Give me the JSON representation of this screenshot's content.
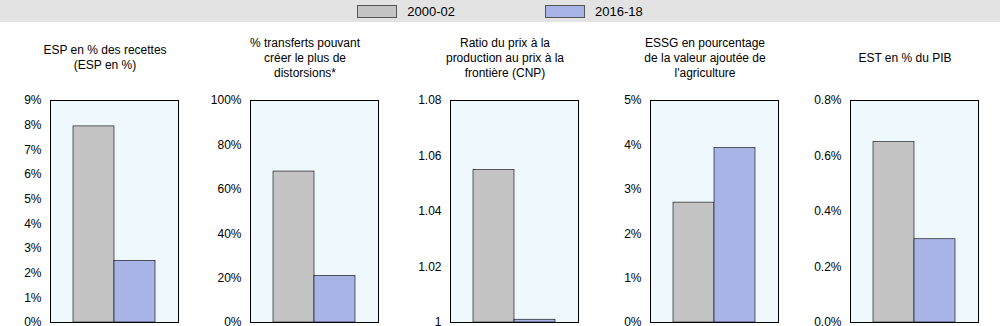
{
  "chart_data": [
    {
      "type": "bar",
      "title": "ESP en % des recettes (ESP en %)",
      "categories": [
        null
      ],
      "legend": "top",
      "tick_labels": "y",
      "series": [
        {
          "name": "2000-02",
          "color": "#c4c4c4",
          "values": [
            7.95
          ]
        },
        {
          "name": "2016-18",
          "color": "#a9b4e6",
          "values": [
            2.5
          ]
        }
      ],
      "ylim": [
        0,
        9
      ],
      "yticks": [
        {
          "value": 0,
          "label": "0%"
        },
        {
          "value": 1,
          "label": "1%"
        },
        {
          "value": 2,
          "label": "2%"
        },
        {
          "value": 3,
          "label": "3%"
        },
        {
          "value": 4,
          "label": "4%"
        },
        {
          "value": 5,
          "label": "5%"
        },
        {
          "value": 6,
          "label": "6%"
        },
        {
          "value": 7,
          "label": "7%"
        },
        {
          "value": 8,
          "label": "8%"
        },
        {
          "value": 9,
          "label": "9%"
        }
      ]
    },
    {
      "type": "bar",
      "title": "% transferts pouvant créer le plus de distorsions*",
      "categories": [
        null
      ],
      "tick_labels": "y",
      "series": [
        {
          "name": "2000-02",
          "color": "#c4c4c4",
          "values": [
            68
          ]
        },
        {
          "name": "2016-18",
          "color": "#a9b4e6",
          "values": [
            21
          ]
        }
      ],
      "ylim": [
        0,
        100
      ],
      "yticks": [
        {
          "value": 0,
          "label": "0%"
        },
        {
          "value": 20,
          "label": "20%"
        },
        {
          "value": 40,
          "label": "40%"
        },
        {
          "value": 60,
          "label": "60%"
        },
        {
          "value": 80,
          "label": "80%"
        },
        {
          "value": 100,
          "label": "100%"
        }
      ]
    },
    {
      "type": "bar",
      "title": "Ratio du prix à la production au prix à la frontière (CNP)",
      "categories": [
        null
      ],
      "tick_labels": "y",
      "series": [
        {
          "name": "2000-02",
          "color": "#c4c4c4",
          "values": [
            1.055
          ]
        },
        {
          "name": "2016-18",
          "color": "#a9b4e6",
          "values": [
            1.001
          ]
        }
      ],
      "ylim": [
        1,
        1.08
      ],
      "yticks": [
        1,
        1.02,
        1.04,
        1.06,
        1.08
      ]
    },
    {
      "type": "bar",
      "title": "ESSG en pourcentage de la valeur ajoutée de l'agriculture",
      "categories": [
        null
      ],
      "tick_labels": "y",
      "series": [
        {
          "name": "2000-02",
          "color": "#c4c4c4",
          "values": [
            2.7
          ]
        },
        {
          "name": "2016-18",
          "color": "#a9b4e6",
          "values": [
            3.93
          ]
        }
      ],
      "ylim": [
        0,
        5
      ],
      "yticks": [
        {
          "value": 0,
          "label": "0%"
        },
        {
          "value": 1,
          "label": "1%"
        },
        {
          "value": 2,
          "label": "2%"
        },
        {
          "value": 3,
          "label": "3%"
        },
        {
          "value": 4,
          "label": "4%"
        },
        {
          "value": 5,
          "label": "5%"
        }
      ]
    },
    {
      "type": "bar",
      "title": "EST en % du PIB",
      "categories": [
        null
      ],
      "tick_labels": "y",
      "series": [
        {
          "name": "2000-02",
          "color": "#c4c4c4",
          "values": [
            0.65
          ]
        },
        {
          "name": "2016-18",
          "color": "#a9b4e6",
          "values": [
            0.3
          ]
        }
      ],
      "ylim": [
        0,
        0.8
      ],
      "yticks": [
        {
          "value": 0,
          "label": "0.0%"
        },
        {
          "value": 0.2,
          "label": "0.2%"
        },
        {
          "value": 0.4,
          "label": "0.4%"
        },
        {
          "value": 0.6,
          "label": "0.6%"
        },
        {
          "value": 0.8,
          "label": "0.8%"
        }
      ]
    }
  ]
}
